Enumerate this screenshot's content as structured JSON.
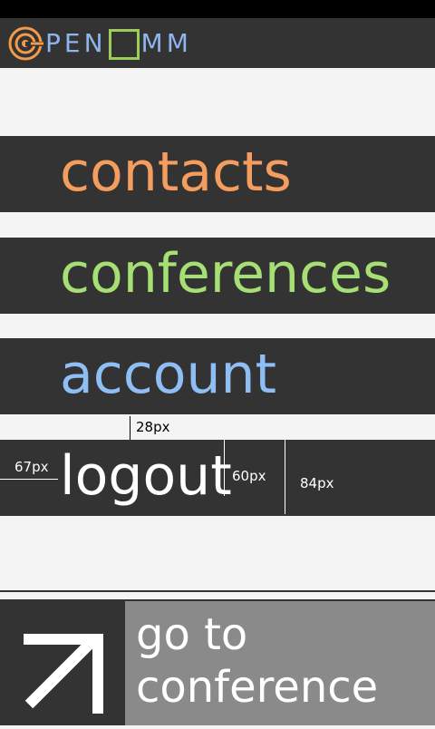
{
  "app": {
    "logo_text": "PEN  MM",
    "colors": {
      "bar": "#333333",
      "background": "#f4f4f4",
      "logo_orange": "#f39b4a",
      "logo_blue": "#8fb4ee",
      "logo_green": "#9ccc5a"
    }
  },
  "menu": {
    "items": [
      {
        "label": "contacts",
        "color": "#f59d5e"
      },
      {
        "label": "conferences",
        "color": "#a6df74"
      },
      {
        "label": "account",
        "color": "#8fbef5"
      },
      {
        "label": "logout",
        "color": "#ffffff"
      }
    ]
  },
  "dimensions": {
    "gap_label": "28px",
    "left_label": "67px",
    "text_height_label": "60px",
    "item_height_label": "84px"
  },
  "bottom": {
    "action_icon": "arrow-up-right-icon",
    "action_label": "go to conference",
    "line1": "go to",
    "line2": "conference"
  }
}
